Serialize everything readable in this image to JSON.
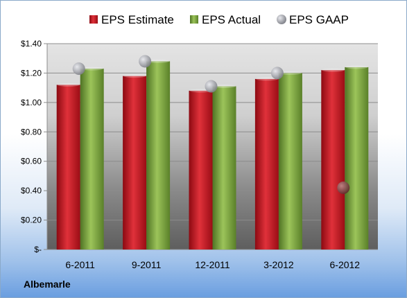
{
  "company": "Albemarle",
  "colors": {
    "estimate": "#c8101c",
    "actual": "#7aa23a",
    "gaap": "#a8aab0"
  },
  "chart_data": {
    "type": "bar",
    "categories": [
      "6-2011",
      "9-2011",
      "12-2011",
      "3-2012",
      "6-2012"
    ],
    "series": [
      {
        "name": "EPS Estimate",
        "kind": "bar",
        "values": [
          1.12,
          1.18,
          1.08,
          1.16,
          1.22
        ]
      },
      {
        "name": "EPS Actual",
        "kind": "bar",
        "values": [
          1.23,
          1.28,
          1.11,
          1.2,
          1.24
        ]
      },
      {
        "name": "EPS GAAP",
        "kind": "point",
        "values": [
          1.23,
          1.28,
          1.11,
          1.2,
          0.42
        ]
      }
    ],
    "yticks": [
      "$-",
      "$0.20",
      "$0.40",
      "$0.60",
      "$0.80",
      "$1.00",
      "$1.20",
      "$1.40"
    ],
    "ylim": [
      0,
      1.4
    ],
    "grid": true,
    "legend": "top"
  }
}
